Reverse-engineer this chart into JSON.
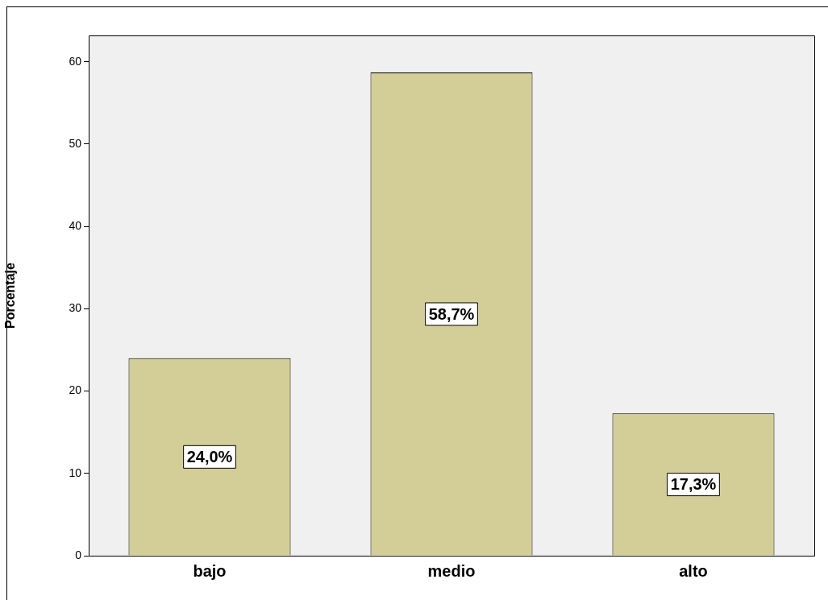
{
  "chart_data": {
    "type": "bar",
    "ylabel": "Porcentaje",
    "categories": [
      "bajo",
      "medio",
      "alto"
    ],
    "values": [
      24.0,
      58.7,
      17.3
    ],
    "value_labels": [
      "24,0%",
      "58,7%",
      "17,3%"
    ],
    "color": "#d3ce98",
    "ylim": [
      0,
      63.2
    ],
    "yticks": [
      0,
      10,
      20,
      30,
      40,
      50,
      60
    ]
  }
}
